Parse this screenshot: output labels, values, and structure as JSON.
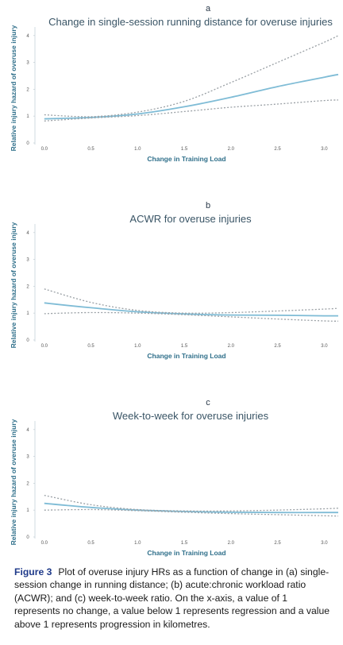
{
  "chart_data": [
    {
      "type": "line",
      "panel": "a",
      "title": "Change in single-session running distance for overuse injuries",
      "xlabel": "Change in Training Load",
      "ylabel": "Relative injury hazard of overuse injury",
      "xlim": [
        -0.1,
        3.15
      ],
      "ylim": [
        0,
        4.2
      ],
      "xticks": [
        "0.0",
        "0.5",
        "1.0",
        "1.5",
        "2.0",
        "2.5",
        "3.0"
      ],
      "yticks": [
        "0",
        "1",
        "2",
        "3",
        "4"
      ],
      "grid": false,
      "series": [
        {
          "role": "estimate",
          "x": [
            0.0,
            0.5,
            1.0,
            1.5,
            2.0,
            2.5,
            3.0,
            3.15
          ],
          "y": [
            0.9,
            0.95,
            1.08,
            1.35,
            1.7,
            2.1,
            2.45,
            2.55
          ]
        },
        {
          "role": "upper",
          "x": [
            0.0,
            0.5,
            1.0,
            1.5,
            2.0,
            2.5,
            3.0,
            3.15
          ],
          "y": [
            1.05,
            0.98,
            1.15,
            1.55,
            2.25,
            3.0,
            3.75,
            4.0
          ]
        },
        {
          "role": "lower",
          "x": [
            0.0,
            0.5,
            1.0,
            1.5,
            2.0,
            2.5,
            3.0,
            3.15
          ],
          "y": [
            0.82,
            0.93,
            1.02,
            1.17,
            1.33,
            1.45,
            1.58,
            1.6
          ]
        }
      ]
    },
    {
      "type": "line",
      "panel": "b",
      "title": "ACWR for overuse injuries",
      "xlabel": "Change in Training Load",
      "ylabel": "Relative injury hazard of overuse injury",
      "xlim": [
        -0.1,
        3.15
      ],
      "ylim": [
        0,
        4.2
      ],
      "xticks": [
        "0.0",
        "0.5",
        "1.0",
        "1.5",
        "2.0",
        "2.5",
        "3.0"
      ],
      "yticks": [
        "0",
        "1",
        "2",
        "3",
        "4"
      ],
      "grid": false,
      "series": [
        {
          "role": "estimate",
          "x": [
            0.0,
            0.5,
            1.0,
            1.5,
            2.0,
            2.5,
            3.0,
            3.15
          ],
          "y": [
            1.38,
            1.2,
            1.05,
            0.97,
            0.93,
            0.92,
            0.9,
            0.9
          ]
        },
        {
          "role": "upper",
          "x": [
            0.0,
            0.5,
            1.0,
            1.5,
            2.0,
            2.5,
            3.0,
            3.15
          ],
          "y": [
            1.9,
            1.4,
            1.1,
            1.0,
            1.02,
            1.08,
            1.15,
            1.18
          ]
        },
        {
          "role": "lower",
          "x": [
            0.0,
            0.5,
            1.0,
            1.5,
            2.0,
            2.5,
            3.0,
            3.15
          ],
          "y": [
            0.98,
            1.02,
            1.0,
            0.94,
            0.86,
            0.78,
            0.71,
            0.7
          ]
        }
      ]
    },
    {
      "type": "line",
      "panel": "c",
      "title": "Week-to-week for overuse injuries",
      "xlabel": "Change in Training Load",
      "ylabel": "Relative injury hazard of overuse injury",
      "xlim": [
        -0.1,
        3.15
      ],
      "ylim": [
        0,
        4.2
      ],
      "xticks": [
        "0.0",
        "0.5",
        "1.0",
        "1.5",
        "2.0",
        "2.5",
        "3.0"
      ],
      "yticks": [
        "0",
        "1",
        "2",
        "3",
        "4"
      ],
      "grid": false,
      "series": [
        {
          "role": "estimate",
          "x": [
            0.0,
            0.5,
            1.0,
            1.5,
            2.0,
            2.5,
            3.0,
            3.15
          ],
          "y": [
            1.25,
            1.1,
            1.0,
            0.95,
            0.92,
            0.91,
            0.91,
            0.91
          ]
        },
        {
          "role": "upper",
          "x": [
            0.0,
            0.5,
            1.0,
            1.5,
            2.0,
            2.5,
            3.0,
            3.15
          ],
          "y": [
            1.55,
            1.2,
            1.02,
            0.97,
            0.97,
            1.0,
            1.05,
            1.07
          ]
        },
        {
          "role": "lower",
          "x": [
            0.0,
            0.5,
            1.0,
            1.5,
            2.0,
            2.5,
            3.0,
            3.15
          ],
          "y": [
            1.0,
            1.02,
            0.98,
            0.92,
            0.87,
            0.83,
            0.79,
            0.78
          ]
        }
      ]
    }
  ],
  "caption": {
    "label": "Figure 3",
    "text": "Plot of overuse injury HRs as a function of change in (a) single-session change in running distance; (b) acute:chronic workload ratio (ACWR); and (c) week-to-week ratio. On the x-axis, a value of 1 represents no change, a value below 1 represents regression and a value above 1 represents progression in kilometres."
  }
}
